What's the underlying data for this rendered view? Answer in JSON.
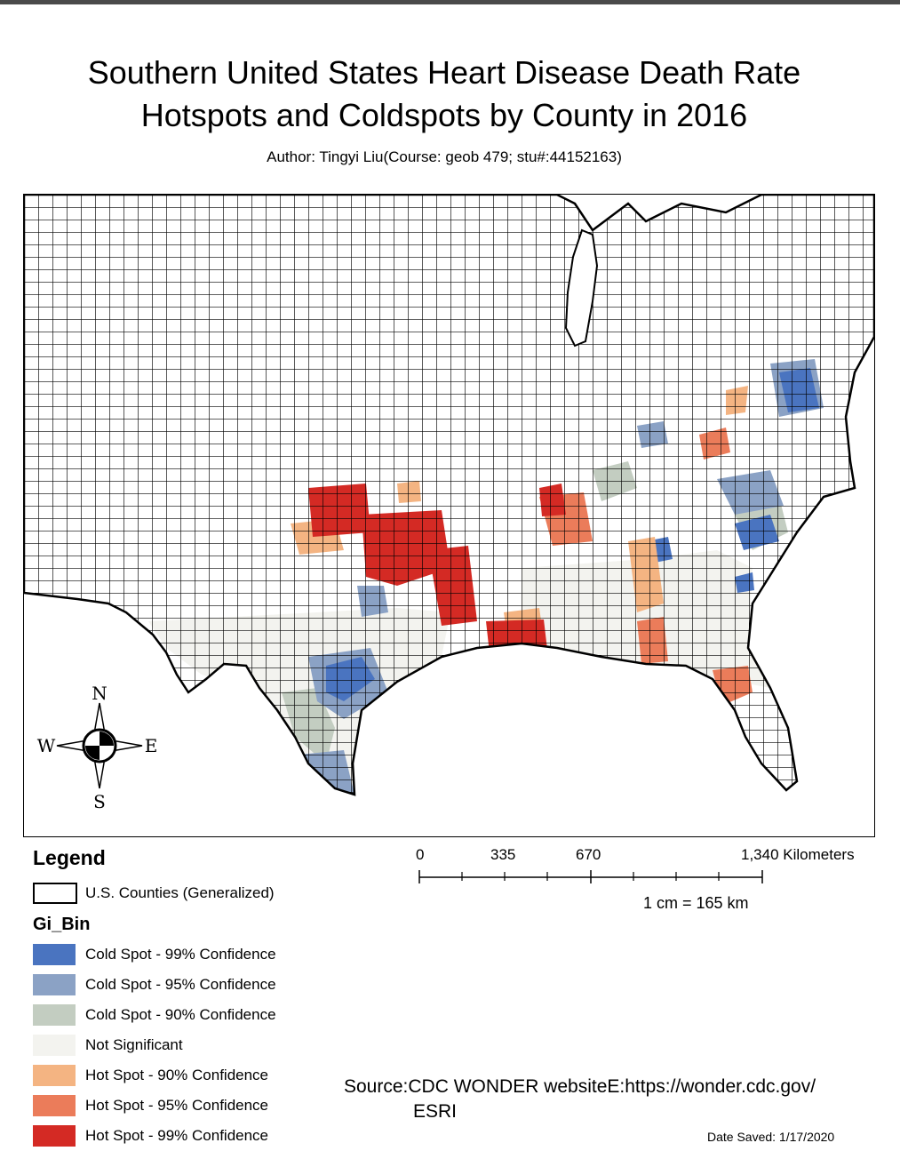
{
  "title_line1": "Southern United States Heart Disease Death Rate",
  "title_line2": "Hotspots and Coldspots by County in 2016",
  "author": "Author: Tingyi Liu(Course: geob 479; stu#:44152163)",
  "compass": {
    "n": "N",
    "s": "S",
    "e": "E",
    "w": "W"
  },
  "legend": {
    "title": "Legend",
    "counties_label": "U.S. Counties (Generalized)",
    "field_title": "Gi_Bin",
    "items": [
      {
        "label": "Cold Spot - 99% Confidence",
        "color": "#4a74c0"
      },
      {
        "label": "Cold Spot - 95% Confidence",
        "color": "#8ba2c5"
      },
      {
        "label": "Cold Spot - 90% Confidence",
        "color": "#c3cdc1"
      },
      {
        "label": "Not Significant",
        "color": "#f3f3ef"
      },
      {
        "label": "Hot Spot - 90% Confidence",
        "color": "#f4b482"
      },
      {
        "label": "Hot Spot - 95% Confidence",
        "color": "#eb7c5a"
      },
      {
        "label": "Hot Spot - 99% Confidence",
        "color": "#d42a24"
      }
    ]
  },
  "scale_bar": {
    "labels": [
      "0",
      "335",
      "670",
      "1,340 Kilometers"
    ],
    "ratio": "1 cm = 165 km"
  },
  "source_line1": "Source:CDC WONDER websiteE:https://wonder.cdc.gov/",
  "source_line2": "ESRI",
  "date_saved": "Date Saved: 1/17/2020"
}
